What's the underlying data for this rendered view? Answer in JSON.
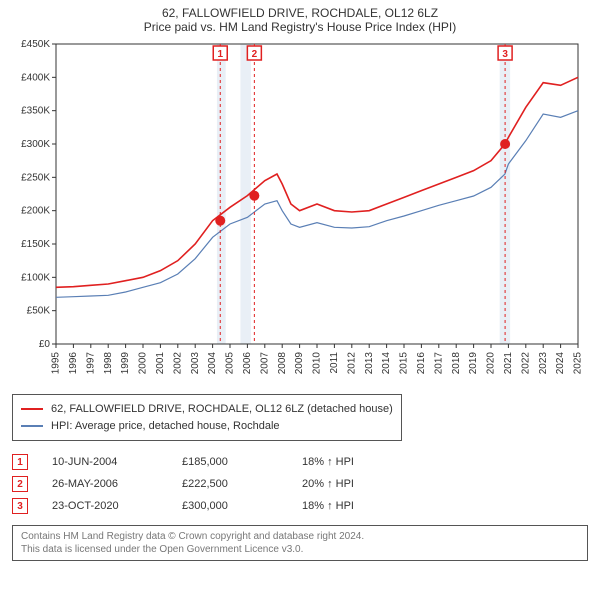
{
  "title_line1": "62, FALLOWFIELD DRIVE, ROCHDALE, OL12 6LZ",
  "title_line2": "Price paid vs. HM Land Registry's House Price Index (HPI)",
  "chart": {
    "type": "line",
    "background_color": "#ffffff",
    "plot_border_color": "#333333",
    "y_axis": {
      "min": 0,
      "max": 450000,
      "tick_step": 50000,
      "tick_labels": [
        "£0",
        "£50K",
        "£100K",
        "£150K",
        "£200K",
        "£250K",
        "£300K",
        "£350K",
        "£400K",
        "£450K"
      ],
      "label_fontsize": 10
    },
    "x_axis": {
      "min": 1995,
      "max": 2025,
      "tick_step": 1,
      "tick_labels": [
        "1995",
        "1996",
        "1997",
        "1998",
        "1999",
        "2000",
        "2001",
        "2002",
        "2003",
        "2004",
        "2005",
        "2006",
        "2007",
        "2008",
        "2009",
        "2010",
        "2011",
        "2012",
        "2013",
        "2014",
        "2015",
        "2016",
        "2017",
        "2018",
        "2019",
        "2020",
        "2021",
        "2022",
        "2023",
        "2024",
        "2025"
      ],
      "label_rotation": -90,
      "label_fontsize": 10
    },
    "shaded_bands": [
      {
        "x_from": 2004.25,
        "x_to": 2004.75,
        "color": "#e9eff6"
      },
      {
        "x_from": 2005.6,
        "x_to": 2006.2,
        "color": "#e9eff6"
      },
      {
        "x_from": 2020.5,
        "x_to": 2021.1,
        "color": "#e9eff6"
      }
    ],
    "series": [
      {
        "name": "property",
        "label": "62, FALLOWFIELD DRIVE, ROCHDALE, OL12 6LZ (detached house)",
        "color": "#e02020",
        "line_width": 1.6,
        "data": [
          [
            1995,
            85000
          ],
          [
            1996,
            86000
          ],
          [
            1997,
            88000
          ],
          [
            1998,
            90000
          ],
          [
            1999,
            95000
          ],
          [
            2000,
            100000
          ],
          [
            2001,
            110000
          ],
          [
            2002,
            125000
          ],
          [
            2003,
            150000
          ],
          [
            2004,
            185000
          ],
          [
            2005,
            205000
          ],
          [
            2006,
            222500
          ],
          [
            2007,
            245000
          ],
          [
            2007.7,
            255000
          ],
          [
            2008,
            240000
          ],
          [
            2008.5,
            210000
          ],
          [
            2009,
            200000
          ],
          [
            2010,
            210000
          ],
          [
            2011,
            200000
          ],
          [
            2012,
            198000
          ],
          [
            2013,
            200000
          ],
          [
            2014,
            210000
          ],
          [
            2015,
            220000
          ],
          [
            2016,
            230000
          ],
          [
            2017,
            240000
          ],
          [
            2018,
            250000
          ],
          [
            2019,
            260000
          ],
          [
            2020,
            275000
          ],
          [
            2020.8,
            300000
          ],
          [
            2021,
            310000
          ],
          [
            2022,
            355000
          ],
          [
            2023,
            392000
          ],
          [
            2024,
            388000
          ],
          [
            2025,
            400000
          ]
        ]
      },
      {
        "name": "hpi",
        "label": "HPI: Average price, detached house, Rochdale",
        "color": "#5a7fb5",
        "line_width": 1.2,
        "data": [
          [
            1995,
            70000
          ],
          [
            1996,
            71000
          ],
          [
            1997,
            72000
          ],
          [
            1998,
            73000
          ],
          [
            1999,
            78000
          ],
          [
            2000,
            85000
          ],
          [
            2001,
            92000
          ],
          [
            2002,
            105000
          ],
          [
            2003,
            128000
          ],
          [
            2004,
            160000
          ],
          [
            2005,
            180000
          ],
          [
            2006,
            190000
          ],
          [
            2007,
            210000
          ],
          [
            2007.7,
            215000
          ],
          [
            2008,
            200000
          ],
          [
            2008.5,
            180000
          ],
          [
            2009,
            175000
          ],
          [
            2010,
            182000
          ],
          [
            2011,
            175000
          ],
          [
            2012,
            174000
          ],
          [
            2013,
            176000
          ],
          [
            2014,
            185000
          ],
          [
            2015,
            192000
          ],
          [
            2016,
            200000
          ],
          [
            2017,
            208000
          ],
          [
            2018,
            215000
          ],
          [
            2019,
            222000
          ],
          [
            2020,
            235000
          ],
          [
            2020.8,
            255000
          ],
          [
            2021,
            270000
          ],
          [
            2022,
            305000
          ],
          [
            2023,
            345000
          ],
          [
            2024,
            340000
          ],
          [
            2025,
            350000
          ]
        ]
      }
    ],
    "sale_markers": [
      {
        "n": "1",
        "year": 2004.44,
        "price": 185000
      },
      {
        "n": "2",
        "year": 2006.4,
        "price": 222500
      },
      {
        "n": "3",
        "year": 2020.81,
        "price": 300000
      }
    ],
    "marker_dot_color": "#e02020",
    "marker_dot_radius": 5,
    "marker_guideline_color": "#e02020",
    "marker_guideline_dash": "3,3"
  },
  "legend": {
    "border_color": "#555555"
  },
  "sales_table": {
    "rows": [
      {
        "n": "1",
        "date": "10-JUN-2004",
        "price": "£185,000",
        "diff": "18% ↑ HPI"
      },
      {
        "n": "2",
        "date": "26-MAY-2006",
        "price": "£222,500",
        "diff": "20% ↑ HPI"
      },
      {
        "n": "3",
        "date": "23-OCT-2020",
        "price": "£300,000",
        "diff": "18% ↑ HPI"
      }
    ]
  },
  "footer": {
    "line1": "Contains HM Land Registry data © Crown copyright and database right 2024.",
    "line2": "This data is licensed under the Open Government Licence v3.0."
  }
}
